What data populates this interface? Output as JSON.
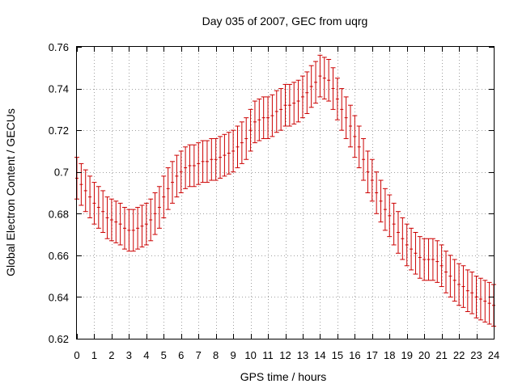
{
  "chart_data": {
    "type": "scatter",
    "title": "Day 035 of 2007, GEC from uqrg",
    "xlabel": "GPS time / hours",
    "ylabel": "Global Electron Content / GECUs",
    "xlim": [
      0,
      24
    ],
    "ylim": [
      0.62,
      0.76
    ],
    "grid": true,
    "color": "#cc0000",
    "x_ticks": [
      0,
      1,
      2,
      3,
      4,
      5,
      6,
      7,
      8,
      9,
      10,
      11,
      12,
      13,
      14,
      15,
      16,
      17,
      18,
      19,
      20,
      21,
      22,
      23,
      24
    ],
    "y_ticks": [
      0.62,
      0.64,
      0.66,
      0.68,
      0.7,
      0.72,
      0.74,
      0.76
    ],
    "y_tick_labels": [
      "0.62",
      "0.64",
      "0.66",
      "0.68",
      "0.7",
      "0.72",
      "0.74",
      "0.76"
    ],
    "series": [
      {
        "name": "GEC",
        "x": [
          0,
          0.25,
          0.5,
          0.75,
          1,
          1.25,
          1.5,
          1.75,
          2,
          2.25,
          2.5,
          2.75,
          3,
          3.25,
          3.5,
          3.75,
          4,
          4.25,
          4.5,
          4.75,
          5,
          5.25,
          5.5,
          5.75,
          6,
          6.25,
          6.5,
          6.75,
          7,
          7.25,
          7.5,
          7.75,
          8,
          8.25,
          8.5,
          8.75,
          9,
          9.25,
          9.5,
          9.75,
          10,
          10.25,
          10.5,
          10.75,
          11,
          11.25,
          11.5,
          11.75,
          12,
          12.25,
          12.5,
          12.75,
          13,
          13.25,
          13.5,
          13.75,
          14,
          14.25,
          14.5,
          14.75,
          15,
          15.25,
          15.5,
          15.75,
          16,
          16.25,
          16.5,
          16.75,
          17,
          17.25,
          17.5,
          17.75,
          18,
          18.25,
          18.5,
          18.75,
          19,
          19.25,
          19.5,
          19.75,
          20,
          20.25,
          20.5,
          20.75,
          21,
          21.25,
          21.5,
          21.75,
          22,
          22.25,
          22.5,
          22.75,
          23,
          23.25,
          23.5,
          23.75,
          24
        ],
        "y": [
          0.697,
          0.694,
          0.691,
          0.688,
          0.685,
          0.683,
          0.681,
          0.678,
          0.677,
          0.676,
          0.675,
          0.673,
          0.672,
          0.672,
          0.673,
          0.674,
          0.675,
          0.677,
          0.68,
          0.683,
          0.688,
          0.692,
          0.695,
          0.698,
          0.7,
          0.702,
          0.703,
          0.703,
          0.704,
          0.705,
          0.705,
          0.706,
          0.706,
          0.707,
          0.708,
          0.709,
          0.71,
          0.712,
          0.714,
          0.716,
          0.72,
          0.724,
          0.725,
          0.726,
          0.726,
          0.727,
          0.729,
          0.73,
          0.732,
          0.732,
          0.733,
          0.734,
          0.736,
          0.738,
          0.741,
          0.743,
          0.746,
          0.745,
          0.744,
          0.74,
          0.735,
          0.73,
          0.726,
          0.722,
          0.717,
          0.712,
          0.706,
          0.7,
          0.696,
          0.69,
          0.686,
          0.682,
          0.679,
          0.675,
          0.671,
          0.668,
          0.665,
          0.663,
          0.661,
          0.659,
          0.658,
          0.658,
          0.658,
          0.657,
          0.655,
          0.652,
          0.65,
          0.648,
          0.646,
          0.645,
          0.643,
          0.642,
          0.64,
          0.639,
          0.638,
          0.637,
          0.636
        ],
        "error": 0.01
      }
    ]
  }
}
